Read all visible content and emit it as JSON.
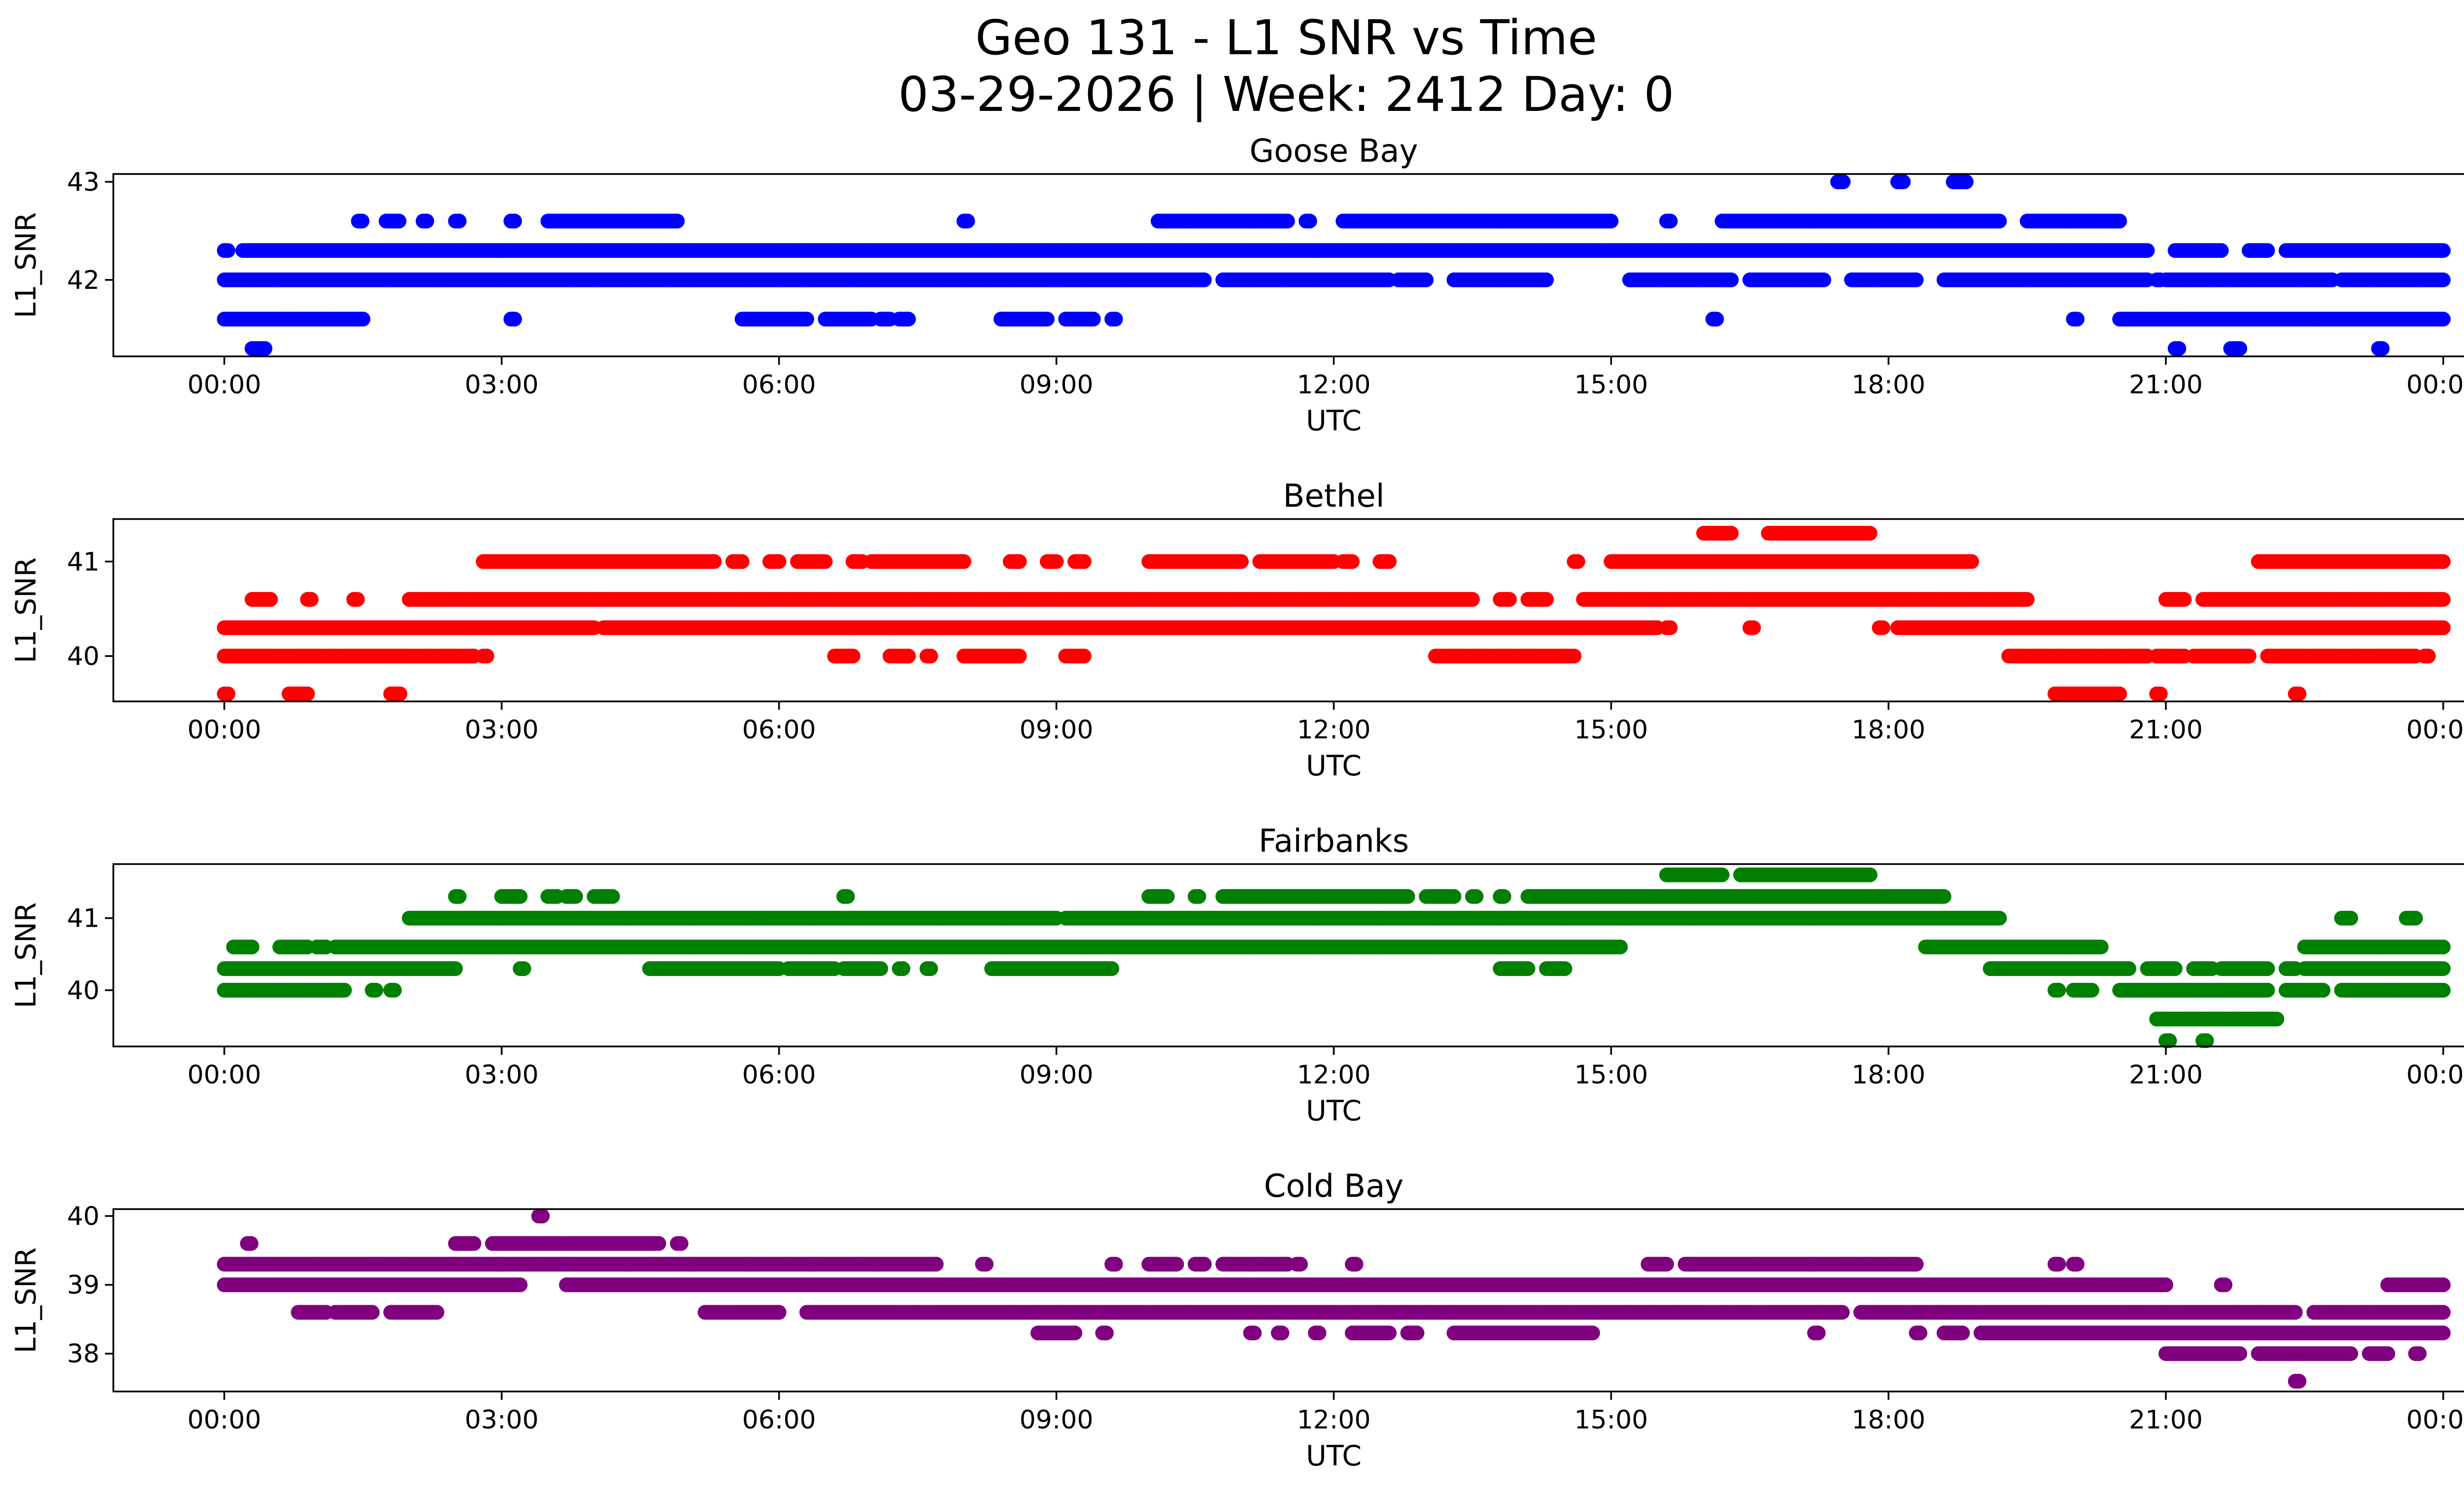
{
  "figure": {
    "title_line1": "Geo 131 - L1 SNR vs Time",
    "title_line2": "03-29-2026 | Week: 2412 Day: 0"
  },
  "chart_data": [
    {
      "type": "scatter",
      "title": "Goose Bay",
      "xlabel": "UTC",
      "ylabel": "L1_SNR",
      "color": "#0000ff",
      "xlim_hours": [
        -1.2,
        25.2
      ],
      "x_ticks": [
        "00:00",
        "03:00",
        "06:00",
        "09:00",
        "12:00",
        "15:00",
        "18:00",
        "21:00",
        "00:00"
      ],
      "ylim": [
        41.22,
        43.08
      ],
      "y_ticks": [
        42,
        43
      ],
      "bands": [
        {
          "y": 43.0,
          "segments": [
            [
              17.45,
              17.52
            ],
            [
              18.1,
              18.17
            ],
            [
              18.7,
              18.85
            ]
          ]
        },
        {
          "y": 42.6,
          "segments": [
            [
              1.45,
              1.5
            ],
            [
              1.75,
              1.9
            ],
            [
              2.15,
              2.2
            ],
            [
              2.5,
              2.55
            ],
            [
              3.1,
              3.15
            ],
            [
              3.5,
              4.9
            ],
            [
              8.0,
              8.05
            ],
            [
              10.1,
              11.5
            ],
            [
              11.7,
              11.75
            ],
            [
              12.1,
              15.0
            ],
            [
              15.6,
              15.65
            ],
            [
              16.2,
              19.2
            ],
            [
              19.5,
              20.5
            ]
          ]
        },
        {
          "y": 42.3,
          "segments": [
            [
              0.0,
              0.05
            ],
            [
              0.2,
              20.8
            ],
            [
              21.1,
              21.6
            ],
            [
              21.9,
              22.1
            ],
            [
              22.3,
              24.0
            ]
          ]
        },
        {
          "y": 42.0,
          "segments": [
            [
              0.0,
              10.6
            ],
            [
              10.8,
              12.6
            ],
            [
              12.7,
              13.0
            ],
            [
              13.3,
              14.3
            ],
            [
              15.2,
              16.3
            ],
            [
              16.5,
              17.3
            ],
            [
              17.6,
              18.3
            ],
            [
              18.6,
              20.8
            ],
            [
              20.9,
              20.95
            ],
            [
              21.0,
              22.8
            ],
            [
              22.9,
              24.0
            ]
          ]
        },
        {
          "y": 41.6,
          "segments": [
            [
              0.0,
              1.5
            ],
            [
              3.1,
              3.15
            ],
            [
              5.6,
              6.3
            ],
            [
              6.5,
              7.0
            ],
            [
              7.1,
              7.2
            ],
            [
              7.3,
              7.4
            ],
            [
              8.4,
              8.9
            ],
            [
              9.1,
              9.4
            ],
            [
              9.6,
              9.65
            ],
            [
              16.1,
              16.15
            ],
            [
              20.0,
              20.05
            ],
            [
              20.5,
              24.0
            ]
          ]
        },
        {
          "y": 41.3,
          "segments": [
            [
              0.3,
              0.45
            ],
            [
              21.1,
              21.15
            ],
            [
              21.7,
              21.8
            ],
            [
              23.3,
              23.35
            ]
          ]
        }
      ]
    },
    {
      "type": "scatter",
      "title": "Bethel",
      "xlabel": "UTC",
      "ylabel": "L1_SNR",
      "color": "#ff0000",
      "xlim_hours": [
        -1.2,
        25.2
      ],
      "x_ticks": [
        "00:00",
        "03:00",
        "06:00",
        "09:00",
        "12:00",
        "15:00",
        "18:00",
        "21:00",
        "00:00"
      ],
      "ylim": [
        39.52,
        41.45
      ],
      "y_ticks": [
        40,
        41
      ],
      "bands": [
        {
          "y": 41.3,
          "segments": [
            [
              16.0,
              16.3
            ],
            [
              16.7,
              17.8
            ]
          ]
        },
        {
          "y": 41.0,
          "segments": [
            [
              2.8,
              5.3
            ],
            [
              5.5,
              5.6
            ],
            [
              5.9,
              6.0
            ],
            [
              6.2,
              6.5
            ],
            [
              6.8,
              6.9
            ],
            [
              7.0,
              8.0
            ],
            [
              8.5,
              8.6
            ],
            [
              8.9,
              9.0
            ],
            [
              9.2,
              9.3
            ],
            [
              10.0,
              11.0
            ],
            [
              11.2,
              12.0
            ],
            [
              12.1,
              12.2
            ],
            [
              12.5,
              12.6
            ],
            [
              14.6,
              14.65
            ],
            [
              15.0,
              18.9
            ],
            [
              22.0,
              24.0
            ]
          ]
        },
        {
          "y": 40.6,
          "segments": [
            [
              0.3,
              0.5
            ],
            [
              0.9,
              0.95
            ],
            [
              1.4,
              1.45
            ],
            [
              2.0,
              13.5
            ],
            [
              13.8,
              13.9
            ],
            [
              14.1,
              14.3
            ],
            [
              14.7,
              19.5
            ],
            [
              21.0,
              21.2
            ],
            [
              21.4,
              24.0
            ]
          ]
        },
        {
          "y": 40.3,
          "segments": [
            [
              0.0,
              4.0
            ],
            [
              4.1,
              15.5
            ],
            [
              15.6,
              15.65
            ],
            [
              16.5,
              16.55
            ],
            [
              17.9,
              17.95
            ],
            [
              18.1,
              24.0
            ]
          ]
        },
        {
          "y": 40.0,
          "segments": [
            [
              0.0,
              2.7
            ],
            [
              2.8,
              2.85
            ],
            [
              6.6,
              6.8
            ],
            [
              7.2,
              7.4
            ],
            [
              7.6,
              7.65
            ],
            [
              8.0,
              8.6
            ],
            [
              9.1,
              9.3
            ],
            [
              13.1,
              14.6
            ],
            [
              19.3,
              20.8
            ],
            [
              20.9,
              21.2
            ],
            [
              21.3,
              21.9
            ],
            [
              22.1,
              23.7
            ],
            [
              23.8,
              23.85
            ]
          ]
        },
        {
          "y": 39.6,
          "segments": [
            [
              0.0,
              0.05
            ],
            [
              0.7,
              0.9
            ],
            [
              1.8,
              1.9
            ],
            [
              19.8,
              20.5
            ],
            [
              20.9,
              20.95
            ],
            [
              22.4,
              22.45
            ]
          ]
        }
      ]
    },
    {
      "type": "scatter",
      "title": "Fairbanks",
      "xlabel": "UTC",
      "ylabel": "L1_SNR",
      "color": "#008000",
      "xlim_hours": [
        -1.2,
        25.2
      ],
      "x_ticks": [
        "00:00",
        "03:00",
        "06:00",
        "09:00",
        "12:00",
        "15:00",
        "18:00",
        "21:00",
        "00:00"
      ],
      "ylim": [
        39.22,
        41.75
      ],
      "y_ticks": [
        40,
        41
      ],
      "bands": [
        {
          "y": 41.6,
          "segments": [
            [
              15.6,
              16.2
            ],
            [
              16.4,
              17.8
            ]
          ]
        },
        {
          "y": 41.3,
          "segments": [
            [
              2.5,
              2.55
            ],
            [
              3.0,
              3.2
            ],
            [
              3.5,
              3.6
            ],
            [
              3.7,
              3.8
            ],
            [
              4.0,
              4.2
            ],
            [
              6.7,
              6.75
            ],
            [
              10.0,
              10.2
            ],
            [
              10.5,
              10.55
            ],
            [
              10.8,
              12.8
            ],
            [
              13.0,
              13.3
            ],
            [
              13.5,
              13.55
            ],
            [
              13.8,
              13.85
            ],
            [
              14.1,
              18.6
            ]
          ]
        },
        {
          "y": 41.0,
          "segments": [
            [
              2.0,
              9.0
            ],
            [
              9.1,
              19.2
            ],
            [
              22.9,
              23.0
            ],
            [
              23.6,
              23.7
            ]
          ]
        },
        {
          "y": 40.6,
          "segments": [
            [
              0.1,
              0.3
            ],
            [
              0.6,
              0.9
            ],
            [
              1.0,
              1.1
            ],
            [
              1.2,
              15.1
            ],
            [
              18.4,
              20.3
            ],
            [
              22.5,
              24.0
            ]
          ]
        },
        {
          "y": 40.3,
          "segments": [
            [
              0.0,
              2.5
            ],
            [
              3.2,
              3.25
            ],
            [
              4.6,
              6.0
            ],
            [
              6.1,
              6.6
            ],
            [
              6.7,
              7.1
            ],
            [
              7.3,
              7.35
            ],
            [
              7.6,
              7.65
            ],
            [
              8.3,
              9.6
            ],
            [
              13.8,
              14.1
            ],
            [
              14.3,
              14.5
            ],
            [
              19.1,
              20.6
            ],
            [
              20.8,
              21.1
            ],
            [
              21.3,
              21.5
            ],
            [
              21.6,
              22.1
            ],
            [
              22.3,
              22.4
            ],
            [
              22.5,
              24.0
            ]
          ]
        },
        {
          "y": 40.0,
          "segments": [
            [
              0.0,
              1.3
            ],
            [
              1.6,
              1.65
            ],
            [
              1.8,
              1.85
            ],
            [
              19.8,
              19.85
            ],
            [
              20.0,
              20.2
            ],
            [
              20.5,
              22.1
            ],
            [
              22.3,
              22.7
            ],
            [
              22.9,
              24.0
            ]
          ]
        },
        {
          "y": 39.6,
          "segments": [
            [
              20.9,
              22.2
            ]
          ]
        },
        {
          "y": 39.3,
          "segments": [
            [
              21.0,
              21.05
            ],
            [
              21.4,
              21.45
            ]
          ]
        }
      ]
    },
    {
      "type": "scatter",
      "title": "Cold Bay",
      "xlabel": "UTC",
      "ylabel": "L1_SNR",
      "color": "#800080",
      "xlim_hours": [
        -1.2,
        25.2
      ],
      "x_ticks": [
        "00:00",
        "03:00",
        "06:00",
        "09:00",
        "12:00",
        "15:00",
        "18:00",
        "21:00",
        "00:00"
      ],
      "ylim": [
        37.45,
        40.1
      ],
      "y_ticks": [
        38,
        39,
        40
      ],
      "bands": [
        {
          "y": 40.0,
          "segments": [
            [
              3.4,
              3.45
            ]
          ]
        },
        {
          "y": 39.6,
          "segments": [
            [
              0.25,
              0.3
            ],
            [
              2.5,
              2.7
            ],
            [
              2.9,
              4.7
            ],
            [
              4.9,
              4.95
            ]
          ]
        },
        {
          "y": 39.3,
          "segments": [
            [
              0.0,
              7.7
            ],
            [
              8.2,
              8.25
            ],
            [
              9.6,
              9.65
            ],
            [
              10.0,
              10.3
            ],
            [
              10.5,
              10.6
            ],
            [
              10.8,
              11.5
            ],
            [
              11.6,
              11.65
            ],
            [
              12.2,
              12.25
            ],
            [
              15.4,
              15.6
            ],
            [
              15.8,
              18.3
            ],
            [
              19.8,
              19.85
            ],
            [
              20.0,
              20.05
            ]
          ]
        },
        {
          "y": 39.0,
          "segments": [
            [
              0.0,
              3.2
            ],
            [
              3.7,
              21.0
            ],
            [
              21.6,
              21.65
            ],
            [
              23.4,
              24.0
            ]
          ]
        },
        {
          "y": 38.6,
          "segments": [
            [
              0.8,
              1.1
            ],
            [
              1.2,
              1.6
            ],
            [
              1.8,
              2.3
            ],
            [
              5.2,
              6.0
            ],
            [
              6.3,
              17.5
            ],
            [
              17.7,
              22.4
            ],
            [
              22.6,
              24.0
            ]
          ]
        },
        {
          "y": 38.3,
          "segments": [
            [
              8.8,
              9.2
            ],
            [
              9.5,
              9.55
            ],
            [
              11.1,
              11.15
            ],
            [
              11.4,
              11.45
            ],
            [
              11.8,
              11.85
            ],
            [
              12.2,
              12.6
            ],
            [
              12.8,
              12.9
            ],
            [
              13.3,
              14.8
            ],
            [
              17.2,
              17.25
            ],
            [
              18.3,
              18.35
            ],
            [
              18.6,
              18.8
            ],
            [
              19.0,
              24.0
            ]
          ]
        },
        {
          "y": 38.0,
          "segments": [
            [
              21.0,
              21.8
            ],
            [
              22.0,
              23.0
            ],
            [
              23.2,
              23.4
            ],
            [
              23.7,
              23.75
            ]
          ]
        },
        {
          "y": 37.6,
          "segments": [
            [
              22.4,
              22.45
            ]
          ]
        }
      ]
    }
  ]
}
